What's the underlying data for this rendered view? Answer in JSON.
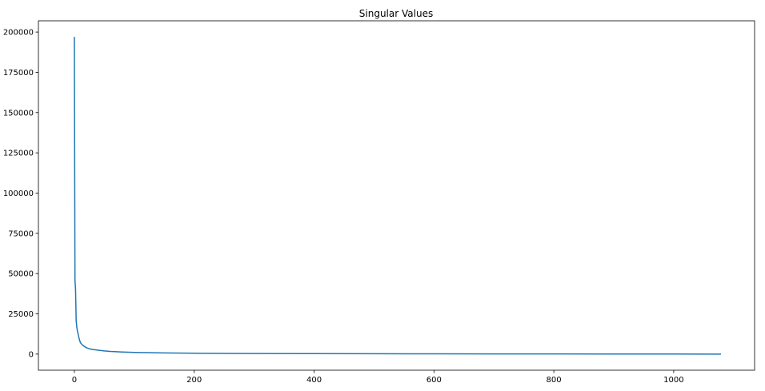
{
  "chart_data": {
    "type": "line",
    "title": "Singular Values",
    "xlabel": "",
    "ylabel": "",
    "xlim": [
      -60,
      1135
    ],
    "ylim": [
      -10000,
      207000
    ],
    "grid": false,
    "x_ticks": [
      0,
      200,
      400,
      600,
      800,
      1000
    ],
    "x_tick_labels": [
      "0",
      "200",
      "400",
      "600",
      "800",
      "1000"
    ],
    "y_ticks": [
      0,
      25000,
      50000,
      75000,
      100000,
      125000,
      150000,
      175000,
      200000
    ],
    "y_tick_labels": [
      "0",
      "25000",
      "50000",
      "75000",
      "100000",
      "125000",
      "150000",
      "175000",
      "200000"
    ],
    "series": [
      {
        "color": "#1f77b4",
        "x": [
          0,
          1,
          2,
          3,
          4,
          5,
          6,
          8,
          10,
          13,
          16,
          20,
          25,
          30,
          40,
          50,
          60,
          80,
          100,
          120,
          150,
          200,
          250,
          300,
          400,
          500,
          600,
          700,
          800,
          900,
          1000,
          1079
        ],
        "y": [
          197000,
          46000,
          40000,
          21000,
          17000,
          14500,
          13000,
          9500,
          7200,
          5800,
          4900,
          4000,
          3300,
          2900,
          2400,
          2000,
          1700,
          1300,
          1050,
          900,
          750,
          550,
          450,
          380,
          280,
          220,
          170,
          130,
          100,
          70,
          40,
          10
        ]
      }
    ]
  }
}
